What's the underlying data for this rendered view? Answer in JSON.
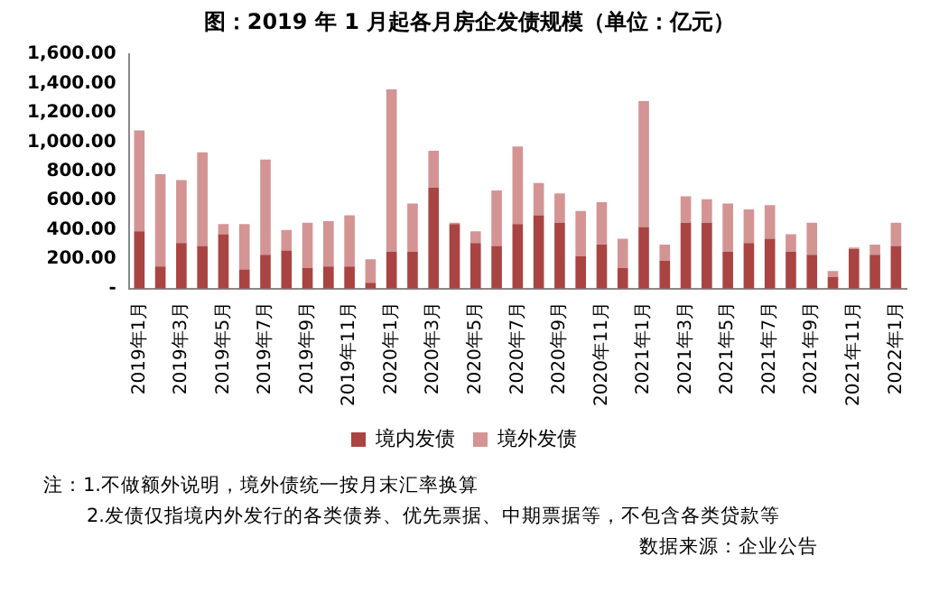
{
  "chart_data": {
    "type": "bar",
    "title": "图：2019 年 1 月起各月房企发债规模（单位：亿元）",
    "categories": [
      "2019年1月",
      null,
      "2019年3月",
      null,
      "2019年5月",
      null,
      "2019年7月",
      null,
      "2019年9月",
      null,
      "2019年11月",
      null,
      "2020年1月",
      null,
      "2020年3月",
      null,
      "2020年5月",
      null,
      "2020年7月",
      null,
      "2020年9月",
      null,
      "2020年11月",
      null,
      "2021年1月",
      null,
      "2021年3月",
      null,
      "2021年5月",
      null,
      "2021年7月",
      null,
      "2021年9月",
      null,
      "2021年11月",
      null,
      "2022年1月"
    ],
    "series": [
      {
        "name": "境内发债",
        "color": "#a94442",
        "values": [
          390,
          150,
          310,
          290,
          370,
          130,
          230,
          260,
          140,
          150,
          150,
          40,
          250,
          250,
          690,
          440,
          310,
          290,
          440,
          500,
          450,
          220,
          300,
          140,
          420,
          190,
          450,
          450,
          250,
          310,
          340,
          250,
          230,
          80,
          270,
          230,
          290
        ]
      },
      {
        "name": "境外发债",
        "color": "#d49494",
        "values": [
          690,
          630,
          430,
          640,
          70,
          310,
          650,
          140,
          310,
          310,
          350,
          160,
          1110,
          330,
          250,
          10,
          80,
          380,
          530,
          220,
          200,
          310,
          290,
          200,
          860,
          110,
          180,
          160,
          330,
          230,
          230,
          120,
          220,
          40,
          10,
          70,
          160
        ]
      }
    ],
    "stacked": true,
    "ylim": [
      0,
      1600
    ],
    "yticks": [
      {
        "value": 0,
        "label": "-"
      },
      {
        "value": 200,
        "label": "200.00"
      },
      {
        "value": 400,
        "label": "400.00"
      },
      {
        "value": 600,
        "label": "600.00"
      },
      {
        "value": 800,
        "label": "800.00"
      },
      {
        "value": 1000,
        "label": "1,000.00"
      },
      {
        "value": 1200,
        "label": "1,200.00"
      },
      {
        "value": 1400,
        "label": "1,400.00"
      },
      {
        "value": 1600,
        "label": "1,600.00"
      }
    ],
    "grid": false,
    "legend": "bottom",
    "annotations": [
      "注：1.不做额外说明，境外债统一按月末汇率换算",
      "2.发债仅指境内外发行的各类债券、优先票据、中期票据等，不包含各类贷款等",
      "数据来源：企业公告"
    ]
  }
}
